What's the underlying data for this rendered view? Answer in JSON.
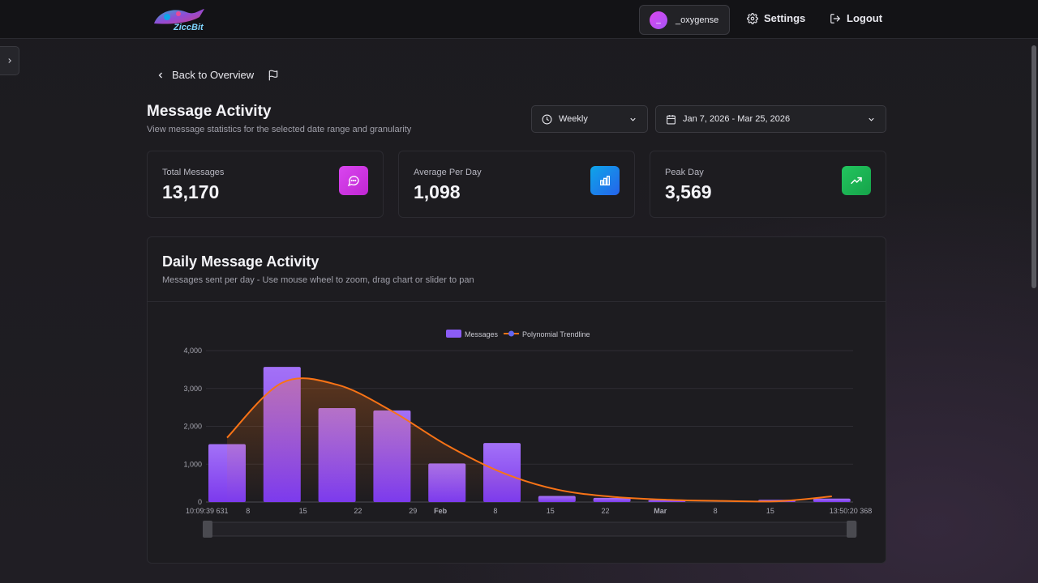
{
  "header": {
    "logo_text": "ZiccBit",
    "user": {
      "name": "_oxygense",
      "avatar_initial": "_"
    },
    "settings_label": "Settings",
    "logout_label": "Logout"
  },
  "nav": {
    "back_label": "Back to Overview"
  },
  "page": {
    "title": "Message Activity",
    "subtitle": "View message statistics for the selected date range and granularity"
  },
  "filters": {
    "granularity": "Weekly",
    "date_range": "Jan 7, 2026 - Mar 25, 2026"
  },
  "stats": [
    {
      "label": "Total Messages",
      "value": "13,170",
      "color": "#d946ef",
      "icon": "message-icon"
    },
    {
      "label": "Average Per Day",
      "value": "1,098",
      "color": "#0ea5e9",
      "icon": "bar-chart-icon"
    },
    {
      "label": "Peak Day",
      "value": "3,569",
      "color": "#22c55e",
      "icon": "trending-up-icon"
    }
  ],
  "chart": {
    "title": "Daily Message Activity",
    "subtitle": "Messages sent per day - Use mouse wheel to zoom, drag chart or slider to pan"
  },
  "chart_data": {
    "type": "bar",
    "legend": [
      "Messages",
      "Polynomial Trendline"
    ],
    "legend_position": "top-center",
    "ylim": [
      0,
      4000
    ],
    "y_ticks": [
      "0",
      "1,000",
      "2,000",
      "3,000",
      "4,000"
    ],
    "x_tick_labels": [
      {
        "label": "10:09:39 631",
        "pos": 0,
        "bold": false
      },
      {
        "label": "8",
        "pos": 1,
        "bold": false
      },
      {
        "label": "15",
        "pos": 2,
        "bold": false
      },
      {
        "label": "22",
        "pos": 3,
        "bold": false
      },
      {
        "label": "29",
        "pos": 4,
        "bold": false
      },
      {
        "label": "Feb",
        "pos": 4.5,
        "bold": true
      },
      {
        "label": "8",
        "pos": 5.5,
        "bold": false
      },
      {
        "label": "15",
        "pos": 6.5,
        "bold": false
      },
      {
        "label": "22",
        "pos": 7.5,
        "bold": false
      },
      {
        "label": "Mar",
        "pos": 8.5,
        "bold": true
      },
      {
        "label": "8",
        "pos": 9.5,
        "bold": false
      },
      {
        "label": "15",
        "pos": 10.5,
        "bold": false
      },
      {
        "label": "13:50:20 368",
        "pos": 11.5,
        "bold": false
      }
    ],
    "series": [
      {
        "name": "Messages",
        "values": [
          1530,
          3569,
          2480,
          2420,
          1020,
          1560,
          160,
          110,
          50,
          0,
          60,
          90
        ],
        "color": "#8b5cf6"
      },
      {
        "name": "Polynomial Trendline",
        "values": [
          1700,
          3150,
          3100,
          2400,
          1500,
          780,
          330,
          140,
          60,
          30,
          20,
          150
        ],
        "color": "#f97316"
      }
    ]
  }
}
